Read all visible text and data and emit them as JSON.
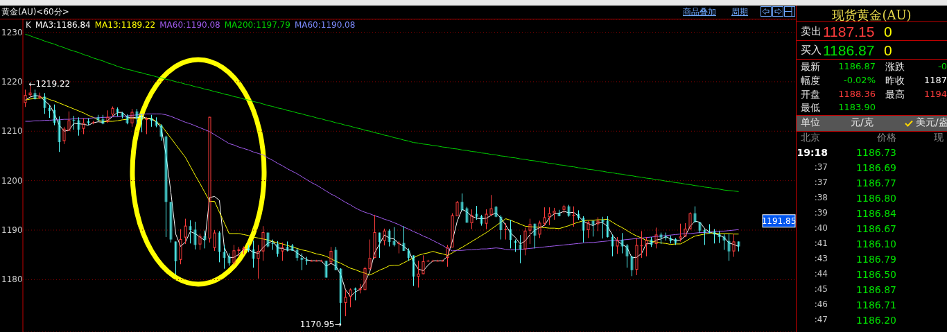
{
  "chart_data": [
    {
      "type": "candlestick",
      "title": "黄金(AU)<60分>",
      "categories": [
        null,
        null,
        null,
        null,
        null,
        null,
        null,
        null,
        null,
        null,
        null,
        null,
        null,
        null,
        null,
        null,
        null,
        null,
        null,
        null,
        null,
        null,
        null,
        null,
        null,
        null,
        null,
        null,
        null,
        null,
        null,
        null,
        null,
        null,
        null,
        null,
        null,
        null,
        null,
        null,
        null,
        null,
        null,
        null,
        null,
        null,
        null,
        null,
        null,
        null,
        null,
        null,
        null,
        null,
        null,
        null,
        null,
        null,
        null,
        null,
        null,
        null,
        null,
        null,
        null,
        null,
        null,
        null,
        null,
        null,
        null,
        null,
        null,
        null,
        null,
        null,
        null,
        null,
        null,
        null,
        null,
        null,
        null,
        null,
        null,
        null,
        null,
        null,
        null,
        null,
        null,
        null,
        null,
        null,
        null,
        null,
        null,
        null,
        null,
        null,
        null,
        null,
        null,
        null,
        null,
        null,
        null,
        null,
        null,
        null,
        null,
        null,
        null,
        null,
        null,
        null,
        null,
        null,
        null,
        null,
        null,
        null,
        null,
        null,
        null,
        null,
        null,
        null,
        null,
        null,
        null,
        null,
        null,
        null,
        null,
        null,
        null,
        null,
        null,
        null,
        null,
        null,
        null,
        null,
        null,
        null,
        null,
        null
      ],
      "ohlc": [
        [
          1215.7,
          1218.4,
          1214.9,
          1217.3
        ],
        [
          1217.3,
          1219.22,
          1217.0,
          1217.8
        ],
        [
          1217.7,
          1218.4,
          1216.4,
          1216.5
        ],
        [
          1216.7,
          1217.8,
          1216.5,
          1217.1
        ],
        [
          1217.0,
          1217.7,
          1213.5,
          1214.7
        ],
        [
          1214.7,
          1215.3,
          1212.7,
          1214.1
        ],
        [
          1214.3,
          1215.4,
          1211.2,
          1211.7
        ],
        [
          1212.2,
          1213.0,
          1205.8,
          1207.8
        ],
        [
          1208.0,
          1210.9,
          1207.4,
          1210.5
        ],
        [
          1210.1,
          1214.0,
          1210.1,
          1212.2
        ],
        [
          1212.3,
          1213.1,
          1210.3,
          1212.1
        ],
        [
          1212.2,
          1212.8,
          1209.1,
          1210.3
        ],
        [
          1210.5,
          1212.6,
          1209.4,
          1211.7
        ],
        [
          1212.0,
          1212.6,
          1211.2,
          1211.6
        ],
        [
          1211.7,
          1212.1,
          1211.4,
          1211.8
        ],
        [
          1212.8,
          1213.3,
          1212.0,
          1212.2
        ],
        [
          1212.4,
          1213.3,
          1211.4,
          1211.5
        ],
        [
          1211.9,
          1214.2,
          1211.7,
          1212.9
        ],
        [
          1213.4,
          1215.0,
          1213.0,
          1214.7
        ],
        [
          1214.5,
          1214.8,
          1213.0,
          1213.8
        ],
        [
          1213.7,
          1213.9,
          1212.6,
          1213.0
        ],
        [
          1213.1,
          1213.4,
          1211.4,
          1211.6
        ],
        [
          1211.6,
          1214.5,
          1210.9,
          1213.9
        ],
        [
          1214.0,
          1214.5,
          1211.4,
          1212.6
        ],
        [
          1212.8,
          1213.5,
          1209.8,
          1212.5
        ],
        [
          1212.3,
          1212.8,
          1209.4,
          1212.6
        ],
        [
          1212.6,
          1213.3,
          1210.9,
          1212.1
        ],
        [
          1212.0,
          1212.8,
          1210.8,
          1211.1
        ],
        [
          1211.2,
          1211.4,
          1208.1,
          1208.9
        ],
        [
          1208.9,
          1209.1,
          1188.6,
          1195.7
        ],
        [
          1195.7,
          1195.7,
          1187.5,
          1188.1
        ],
        [
          1187.7,
          1187.7,
          1181.0,
          1183.7
        ],
        [
          1184.0,
          1190.2,
          1183.1,
          1188.2
        ],
        [
          1188.5,
          1192.3,
          1187.2,
          1190.9
        ],
        [
          1190.8,
          1192.0,
          1187.3,
          1190.0
        ],
        [
          1190.1,
          1191.7,
          1186.1,
          1187.0
        ],
        [
          1187.1,
          1189.3,
          1186.0,
          1188.8
        ],
        [
          1188.8,
          1189.9,
          1186.3,
          1188.0
        ],
        [
          1188.3,
          1212.9,
          1187.5,
          1212.9
        ],
        [
          1186.4,
          1190.0,
          1185.8,
          1189.5
        ],
        [
          1189.5,
          1189.8,
          1183.5,
          1185.6
        ],
        [
          1185.6,
          1187.0,
          1182.2,
          1184.4
        ],
        [
          1184.7,
          1185.3,
          1182.8,
          1183.3
        ],
        [
          1183.3,
          1187.0,
          1182.9,
          1185.9
        ],
        [
          1185.8,
          1186.6,
          1184.6,
          1186.1
        ],
        [
          1185.9,
          1186.7,
          1185.1,
          1186.4
        ],
        [
          1186.4,
          1187.0,
          1185.5,
          1185.9
        ],
        [
          1186.1,
          1187.9,
          1182.4,
          1184.2
        ],
        [
          1184.2,
          1187.0,
          1180.2,
          1185.8
        ],
        [
          1185.7,
          1190.8,
          1183.8,
          1189.6
        ],
        [
          1189.5,
          1189.5,
          1186.5,
          1186.7
        ],
        [
          1187.4,
          1188.1,
          1186.0,
          1187.2
        ],
        [
          1187.2,
          1187.8,
          1184.6,
          1185.2
        ],
        [
          1185.7,
          1187.5,
          1183.8,
          1186.5
        ],
        [
          1186.6,
          1187.7,
          1185.7,
          1186.0
        ],
        [
          1186.9,
          1187.2,
          1185.8,
          1185.8
        ],
        [
          1186.0,
          1186.3,
          1183.8,
          1184.4
        ],
        [
          1184.4,
          1185.3,
          1181.9,
          1184.0
        ],
        [
          1184.0,
          1184.6,
          1183.0,
          1183.7
        ],
        [
          1183.8,
          1184.0,
          1183.7,
          1183.8
        ],
        [
          1183.8,
          1184.0,
          1183.7,
          1183.8
        ],
        [
          1183.8,
          1184.0,
          1183.7,
          1183.8
        ],
        [
          1183.8,
          1183.8,
          1180.4,
          1180.4
        ],
        [
          1183.5,
          1186.6,
          1183.0,
          1185.8
        ],
        [
          1186.0,
          1186.6,
          1181.9,
          1181.9
        ],
        [
          1182.2,
          1182.3,
          1170.95,
          1175.3
        ],
        [
          1175.3,
          1177.9,
          1172.6,
          1176.5
        ],
        [
          1176.5,
          1178.2,
          1174.4,
          1178.0
        ],
        [
          1178.2,
          1178.4,
          1175.8,
          1177.9
        ],
        [
          1177.9,
          1179.1,
          1177.2,
          1178.2
        ],
        [
          1177.9,
          1182.6,
          1177.9,
          1182.3
        ],
        [
          1182.1,
          1188.1,
          1182.1,
          1184.4
        ],
        [
          1184.4,
          1193.1,
          1184.3,
          1189.6
        ],
        [
          1189.5,
          1189.5,
          1184.4,
          1187.6
        ],
        [
          1187.8,
          1190.3,
          1186.9,
          1189.9
        ],
        [
          1189.9,
          1190.2,
          1186.7,
          1187.6
        ],
        [
          1187.8,
          1190.6,
          1186.7,
          1187.0
        ],
        [
          1187.2,
          1187.8,
          1185.3,
          1187.4
        ],
        [
          1187.4,
          1190.8,
          1185.8,
          1185.8
        ],
        [
          1185.9,
          1186.3,
          1183.8,
          1184.4
        ],
        [
          1184.9,
          1184.9,
          1178.7,
          1180.6
        ],
        [
          1180.6,
          1183.8,
          1178.4,
          1181.2
        ],
        [
          1181.1,
          1184.9,
          1181.1,
          1183.7
        ],
        [
          1183.8,
          1184.0,
          1183.7,
          1183.8
        ],
        [
          1183.8,
          1184.0,
          1183.7,
          1183.8
        ],
        [
          1183.8,
          1184.0,
          1183.7,
          1183.8
        ],
        [
          1183.8,
          1184.0,
          1183.7,
          1183.8
        ],
        [
          1184.4,
          1187.0,
          1182.6,
          1186.6
        ],
        [
          1186.5,
          1193.4,
          1186.5,
          1193.0
        ],
        [
          1192.8,
          1195.9,
          1192.8,
          1195.7
        ],
        [
          1195.7,
          1197.4,
          1194.0,
          1194.0
        ],
        [
          1194.4,
          1194.7,
          1191.5,
          1191.5
        ],
        [
          1191.4,
          1194.2,
          1190.2,
          1193.0
        ],
        [
          1193.3,
          1194.9,
          1192.1,
          1192.7
        ],
        [
          1192.8,
          1193.1,
          1190.9,
          1191.3
        ],
        [
          1191.3,
          1194.2,
          1190.2,
          1193.3
        ],
        [
          1193.1,
          1197.1,
          1192.8,
          1194.4
        ],
        [
          1194.7,
          1194.9,
          1192.6,
          1192.7
        ],
        [
          1192.7,
          1193.0,
          1188.1,
          1190.0
        ],
        [
          1190.0,
          1191.4,
          1188.1,
          1190.2
        ],
        [
          1190.2,
          1192.1,
          1186.3,
          1188.0
        ],
        [
          1187.8,
          1188.1,
          1185.6,
          1187.4
        ],
        [
          1187.1,
          1189.0,
          1183.3,
          1186.1
        ],
        [
          1186.1,
          1190.5,
          1184.9,
          1189.9
        ],
        [
          1189.9,
          1192.3,
          1187.2,
          1191.2
        ],
        [
          1191.3,
          1191.3,
          1186.3,
          1188.9
        ],
        [
          1189.1,
          1191.9,
          1188.4,
          1191.5
        ],
        [
          1191.3,
          1194.6,
          1190.9,
          1192.6
        ],
        [
          1192.6,
          1194.6,
          1191.0,
          1193.4
        ],
        [
          1193.4,
          1194.5,
          1192.1,
          1193.9
        ],
        [
          1193.5,
          1194.1,
          1192.8,
          1192.8
        ],
        [
          1194.1,
          1195.1,
          1193.4,
          1194.8
        ],
        [
          1194.8,
          1195.1,
          1192.7,
          1192.9
        ],
        [
          1192.9,
          1194.8,
          1190.7,
          1193.1
        ],
        [
          1193.3,
          1194.0,
          1192.1,
          1192.5
        ],
        [
          1192.5,
          1192.8,
          1187.5,
          1189.9
        ],
        [
          1190.0,
          1191.9,
          1188.4,
          1191.6
        ],
        [
          1191.9,
          1191.9,
          1188.7,
          1191.1
        ],
        [
          1191.2,
          1192.6,
          1189.8,
          1191.9
        ],
        [
          1192.1,
          1192.7,
          1188.3,
          1191.6
        ],
        [
          1191.9,
          1192.8,
          1188.5,
          1188.6
        ],
        [
          1188.6,
          1189.1,
          1184.7,
          1186.7
        ],
        [
          1186.7,
          1188.6,
          1185.2,
          1188.0
        ],
        [
          1188.0,
          1189.4,
          1185.3,
          1186.7
        ],
        [
          1186.9,
          1187.2,
          1182.4,
          1184.7
        ],
        [
          1184.7,
          1184.7,
          1180.7,
          1181.9
        ],
        [
          1182.0,
          1188.4,
          1180.9,
          1187.0
        ],
        [
          1186.8,
          1189.8,
          1184.4,
          1186.9
        ],
        [
          1187.1,
          1188.6,
          1184.7,
          1188.0
        ],
        [
          1188.1,
          1188.6,
          1186.6,
          1187.0
        ],
        [
          1187.2,
          1190.5,
          1186.3,
          1189.1
        ],
        [
          1189.1,
          1189.5,
          1187.2,
          1188.5
        ],
        [
          1188.7,
          1189.5,
          1187.9,
          1188.4
        ],
        [
          1188.4,
          1188.9,
          1187.3,
          1187.8
        ],
        [
          1188.2,
          1188.4,
          1187.0,
          1187.4
        ],
        [
          1188.3,
          1191.3,
          1187.7,
          1188.7
        ],
        [
          1188.7,
          1191.4,
          1188.6,
          1190.3
        ],
        [
          1190.2,
          1193.6,
          1190.1,
          1193.4
        ],
        [
          1193.4,
          1194.8,
          1191.6,
          1191.6
        ],
        [
          1191.6,
          1191.6,
          1189.4,
          1189.9
        ],
        [
          1190.0,
          1190.3,
          1187.0,
          1189.5
        ],
        [
          1189.7,
          1191.2,
          1189.3,
          1189.4
        ],
        [
          1189.7,
          1190.2,
          1187.3,
          1189.1
        ],
        [
          1189.2,
          1189.8,
          1187.4,
          1188.6
        ],
        [
          1188.7,
          1189.2,
          1186.0,
          1187.9
        ],
        [
          1187.8,
          1189.2,
          1183.8,
          1185.7
        ],
        [
          1185.7,
          1189.2,
          1184.6,
          1187.7
        ],
        [
          1187.7,
          1187.7,
          1185.7,
          1186.7
        ]
      ],
      "series": [
        {
          "name": "MA3:1186.84",
          "type": "line",
          "color": "#ffffff",
          "values": [
            1216.3,
            1216.9,
            1217.2,
            1217.1,
            1216.1,
            1215.3,
            1213.5,
            1211.2,
            1210.0,
            1210.2,
            1211.6,
            1211.5,
            1211.4,
            1211.2,
            1211.7,
            1211.9,
            1211.8,
            1212.2,
            1213.0,
            1213.8,
            1213.8,
            1212.8,
            1212.8,
            1212.7,
            1213.0,
            1212.6,
            1212.4,
            1211.9,
            1210.7,
            1205.2,
            1197.6,
            1189.2,
            1186.7,
            1187.6,
            1189.7,
            1189.3,
            1188.6,
            1187.9,
            1196.6,
            1196.8,
            1196.0,
            1186.5,
            1184.4,
            1184.5,
            1185.1,
            1186.1,
            1186.1,
            1185.5,
            1185.3,
            1186.5,
            1187.4,
            1187.8,
            1186.4,
            1186.3,
            1185.9,
            1186.1,
            1185.4,
            1184.7,
            1184.0,
            1183.8,
            1183.8,
            1183.8,
            1182.7,
            1183.3,
            1182.7,
            1181.0,
            1177.9,
            1176.6,
            1177.5,
            1178.0,
            1179.5,
            1181.6,
            1185.4,
            1187.2,
            1189.0,
            1188.4,
            1188.2,
            1187.3,
            1186.7,
            1185.9,
            1183.6,
            1182.1,
            1181.8,
            1182.9,
            1183.8,
            1183.8,
            1183.8,
            1184.7,
            1187.8,
            1191.8,
            1194.2,
            1193.7,
            1192.8,
            1192.4,
            1192.3,
            1192.4,
            1193.0,
            1193.5,
            1192.4,
            1191.0,
            1189.4,
            1188.5,
            1187.2,
            1187.8,
            1189.1,
            1190.0,
            1190.5,
            1191.0,
            1192.5,
            1193.3,
            1193.4,
            1193.8,
            1193.5,
            1193.6,
            1192.8,
            1191.8,
            1191.3,
            1190.9,
            1191.5,
            1191.5,
            1190.7,
            1189.0,
            1187.8,
            1187.1,
            1186.5,
            1184.4,
            1184.5,
            1185.3,
            1187.3,
            1187.3,
            1188.0,
            1188.2,
            1188.7,
            1188.2,
            1187.9,
            1188.0,
            1188.8,
            1190.8,
            1191.8,
            1191.6,
            1190.3,
            1189.6,
            1189.3,
            1189.0,
            1188.5,
            1187.4,
            1187.1,
            1186.7
          ]
        },
        {
          "name": "MA13:1189.22",
          "type": "line",
          "color": "#ffff00",
          "values": [
            1216.3,
            1216.5,
            1216.6,
            1216.7,
            1216.8,
            1216.4,
            1216.1,
            1215.7,
            1215.3,
            1214.9,
            1214.5,
            1214.1,
            1213.7,
            1213.2,
            1212.8,
            1212.3,
            1211.9,
            1212.0,
            1212.0,
            1212.1,
            1212.3,
            1212.4,
            1212.6,
            1212.6,
            1212.6,
            1212.6,
            1212.6,
            1211.9,
            1211.2,
            1209.9,
            1208.6,
            1207.3,
            1206.0,
            1204.7,
            1202.9,
            1201.1,
            1199.4,
            1197.6,
            1195.8,
            1195.8,
            1193.6,
            1191.5,
            1189.3,
            1189.3,
            1189.3,
            1189.1,
            1188.9,
            1188.6,
            1188.4,
            1188.2,
            1188.0,
            1187.7,
            1187.4,
            1187.2,
            1186.9,
            1186.6,
            1186.3,
            1186.0,
            1185.8,
            1185.5,
            1185.2,
            1185.0,
            1184.7,
            1184.2,
            1183.7,
            1183.3,
            1182.8,
            1182.3,
            1182.0,
            1181.6,
            1181.3,
            1180.9,
            1181.4,
            1181.9,
            1182.3,
            1182.8,
            1182.9,
            1182.9,
            1183.4,
            1183.9,
            1184.4,
            1184.9,
            1185.2,
            1185.4,
            1185.7,
            1185.4,
            1185.2,
            1184.9,
            1185.4,
            1186.0,
            1186.5,
            1187.1,
            1187.7,
            1188.3,
            1188.9,
            1189.5,
            1190.2,
            1190.9,
            1191.6,
            1192.3,
            1192.0,
            1191.6,
            1191.2,
            1190.8,
            1190.7,
            1190.6,
            1190.6,
            1190.5,
            1190.4,
            1190.4,
            1190.3,
            1190.6,
            1190.9,
            1191.3,
            1191.6,
            1191.9,
            1192.0,
            1192.0,
            1192.1,
            1192.1,
            1192.2,
            1191.6,
            1191.0,
            1190.5,
            1189.9,
            1189.3,
            1188.8,
            1188.4,
            1187.9,
            1187.7,
            1187.6,
            1187.4,
            1187.3,
            1187.1,
            1187.2,
            1187.2,
            1187.7,
            1188.3,
            1188.8,
            1189.0,
            1189.2,
            1189.4,
            1189.4,
            1189.3,
            1189.3,
            1189.3,
            1189.2,
            1189.2
          ]
        },
        {
          "name": "MA60:1190.08",
          "type": "line",
          "color": "#a25cf0",
          "values": [
            1212.0,
            1212.0,
            1212.1,
            1212.1,
            1212.2,
            1212.2,
            1212.3,
            1212.3,
            1212.4,
            1212.4,
            1212.5,
            1212.5,
            1212.6,
            1212.6,
            1212.7,
            1212.7,
            1212.8,
            1212.8,
            1212.9,
            1212.9,
            1213.0,
            1213.1,
            1213.2,
            1213.3,
            1213.4,
            1213.5,
            1213.5,
            1213.5,
            1213.5,
            1213.3,
            1213.0,
            1212.6,
            1212.2,
            1211.8,
            1211.5,
            1211.1,
            1210.7,
            1210.3,
            1209.9,
            1209.3,
            1208.7,
            1208.1,
            1207.5,
            1207.2,
            1206.8,
            1206.5,
            1206.2,
            1205.8,
            1205.5,
            1205.2,
            1204.6,
            1204.1,
            1203.5,
            1203.0,
            1202.4,
            1201.9,
            1201.4,
            1200.8,
            1200.2,
            1199.6,
            1199.1,
            1198.5,
            1197.9,
            1197.3,
            1196.8,
            1196.2,
            1195.6,
            1195.1,
            1194.5,
            1194.0,
            1193.6,
            1193.3,
            1192.9,
            1192.6,
            1192.2,
            1191.9,
            1191.5,
            1191.1,
            1190.6,
            1190.2,
            1189.7,
            1189.3,
            1188.8,
            1188.4,
            1187.9,
            1187.4,
            1186.9,
            1186.3,
            1185.8,
            1185.9,
            1185.9,
            1186.0,
            1186.0,
            1186.1,
            1186.2,
            1186.2,
            1186.3,
            1186.4,
            1186.3,
            1186.1,
            1186.0,
            1186.0,
            1186.1,
            1186.2,
            1186.3,
            1186.4,
            1186.5,
            1186.6,
            1186.7,
            1186.8,
            1186.9,
            1187.0,
            1187.1,
            1187.2,
            1187.3,
            1187.4,
            1187.5,
            1187.5,
            1187.6,
            1187.7,
            1187.8,
            1187.9,
            1187.9,
            1188.0,
            1188.1,
            1188.2,
            1188.3,
            1188.4,
            1188.5,
            1188.6,
            1188.7,
            1188.8,
            1188.9,
            1189.0,
            1189.1,
            1189.2,
            1189.3,
            1189.3,
            1189.4,
            1189.5,
            1189.5,
            1189.6,
            1189.7,
            1189.8,
            1189.8,
            1189.9,
            1190.0,
            1190.1
          ]
        },
        {
          "name": "MA200:1197.79",
          "type": "line",
          "color": "#00d000",
          "values": [
            1229.6,
            1229.3,
            1228.9,
            1228.6,
            1228.2,
            1227.9,
            1227.6,
            1227.2,
            1226.9,
            1226.5,
            1226.2,
            1225.9,
            1225.5,
            1225.2,
            1224.8,
            1224.5,
            1224.2,
            1223.8,
            1223.5,
            1223.1,
            1222.8,
            1222.5,
            1222.3,
            1222.0,
            1221.8,
            1221.5,
            1221.3,
            1221.0,
            1220.8,
            1220.5,
            1220.3,
            1220.0,
            1219.8,
            1219.5,
            1219.3,
            1219.0,
            1218.8,
            1218.5,
            1218.3,
            1218.0,
            1217.8,
            1217.5,
            1217.3,
            1217.0,
            1216.8,
            1216.5,
            1216.3,
            1216.0,
            1215.8,
            1215.5,
            1215.2,
            1215.0,
            1214.7,
            1214.5,
            1214.2,
            1214.0,
            1213.7,
            1213.5,
            1213.2,
            1213.0,
            1212.7,
            1212.5,
            1212.2,
            1212.0,
            1211.7,
            1211.5,
            1211.2,
            1211.0,
            1210.7,
            1210.5,
            1210.2,
            1210.0,
            1209.7,
            1209.5,
            1209.2,
            1209.0,
            1208.7,
            1208.5,
            1208.2,
            1208.0,
            1207.7,
            1207.6,
            1207.4,
            1207.3,
            1207.1,
            1207.0,
            1206.8,
            1206.7,
            1206.5,
            1206.4,
            1206.2,
            1206.1,
            1205.9,
            1205.8,
            1205.6,
            1205.5,
            1205.3,
            1205.2,
            1205.0,
            1204.9,
            1204.7,
            1204.6,
            1204.4,
            1204.3,
            1204.1,
            1204.0,
            1203.8,
            1203.7,
            1203.5,
            1203.4,
            1203.2,
            1203.1,
            1202.9,
            1202.8,
            1202.6,
            1202.5,
            1202.3,
            1202.2,
            1202.0,
            1201.9,
            1201.7,
            1201.6,
            1201.4,
            1201.3,
            1201.1,
            1201.0,
            1200.8,
            1200.7,
            1200.5,
            1200.4,
            1200.2,
            1200.1,
            1199.9,
            1199.8,
            1199.6,
            1199.5,
            1199.3,
            1199.2,
            1199.0,
            1198.9,
            1198.7,
            1198.6,
            1198.4,
            1198.3,
            1198.1,
            1198.0,
            1197.9,
            1197.8
          ]
        }
      ],
      "ylim": [
        1169.4,
        1232.6
      ],
      "yticks": [
        1180,
        1190,
        1200,
        1210,
        1220,
        1230
      ],
      "grid": "y",
      "legend": "top left",
      "annotations": [
        "K",
        "MA60:1190.08",
        "商品叠加",
        "周期",
        "←1219.22",
        "1170.95→",
        "1191.85"
      ]
    },
    {
      "type": "other",
      "title": "现货黄金(AU)",
      "annotations": [
        "卖出",
        "1187.15",
        "0",
        "买入",
        "1186.87",
        "0",
        "最新",
        "1186.87",
        "涨跌",
        "-0",
        "幅度",
        "-0.02%",
        "昨收",
        "1187",
        "开盘",
        "1188.36",
        "最高",
        "1194",
        "最低",
        "1183.90",
        "单位",
        "元/克",
        "美元/盎",
        "北京",
        "价格",
        "现",
        "19:18",
        "1186.73",
        ":37",
        "1186.69",
        ":37",
        "1186.77",
        ":38",
        "1186.80",
        ":39",
        "1186.84",
        ":40",
        "1186.67",
        ":41",
        "1186.10",
        ":43",
        "1186.79",
        ":44",
        "1186.50",
        ":45",
        "1186.87",
        ":46",
        "1186.71",
        ":47",
        "1186.20"
      ]
    }
  ]
}
